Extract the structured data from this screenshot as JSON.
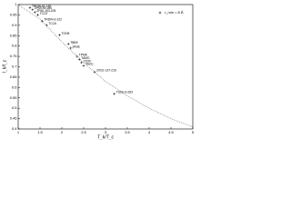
{
  "chart_data": {
    "type": "scatter",
    "xlabel": "T_k/T_c",
    "ylabel": "I_k/I_c",
    "xlim": [
      1,
      5
    ],
    "ylim": [
      0.4,
      1
    ],
    "xticks": [
      1,
      1.5,
      2,
      2.5,
      3,
      3.5,
      4,
      4.5,
      5
    ],
    "yticks": [
      0.4,
      0.45,
      0.5,
      0.55,
      0.6,
      0.65,
      0.7,
      0.75,
      0.8,
      0.85,
      0.9,
      0.95,
      1
    ],
    "legend": "top-right",
    "series": [
      {
        "name": "r_min = 8 Å",
        "color": "#000000",
        "kind": "points",
        "x": [
          1.27,
          1.33,
          1.38,
          1.45,
          1.55,
          1.65,
          1.95,
          2.15,
          2.2,
          2.35,
          2.4,
          2.45,
          2.5,
          2.75,
          3.2
        ],
        "values": [
          0.985,
          0.975,
          0.963,
          0.95,
          0.92,
          0.9,
          0.853,
          0.81,
          0.79,
          0.75,
          0.735,
          0.72,
          0.705,
          0.675,
          0.57
        ],
        "labels": [
          "TRDIN-81-182",
          "ZP60-90-260",
          "ZP60-153-205",
          "TCC9",
          "TRDIN-3-222",
          "TCC6",
          "TOH8",
          "TBB9",
          "pNuE",
          "TPMK",
          "TAMO",
          "TDXF",
          "TAZU",
          "2XCE-137-216",
          "TSCE-6-283"
        ]
      },
      {
        "color": "#555555",
        "kind": "dotted-curve",
        "x": [
          1,
          1.5,
          2,
          2.5,
          3,
          3.5,
          4,
          4.5,
          5
        ],
        "values": [
          1,
          0.93,
          0.82,
          0.72,
          0.63,
          0.56,
          0.5,
          0.45,
          0.41
        ]
      }
    ]
  }
}
